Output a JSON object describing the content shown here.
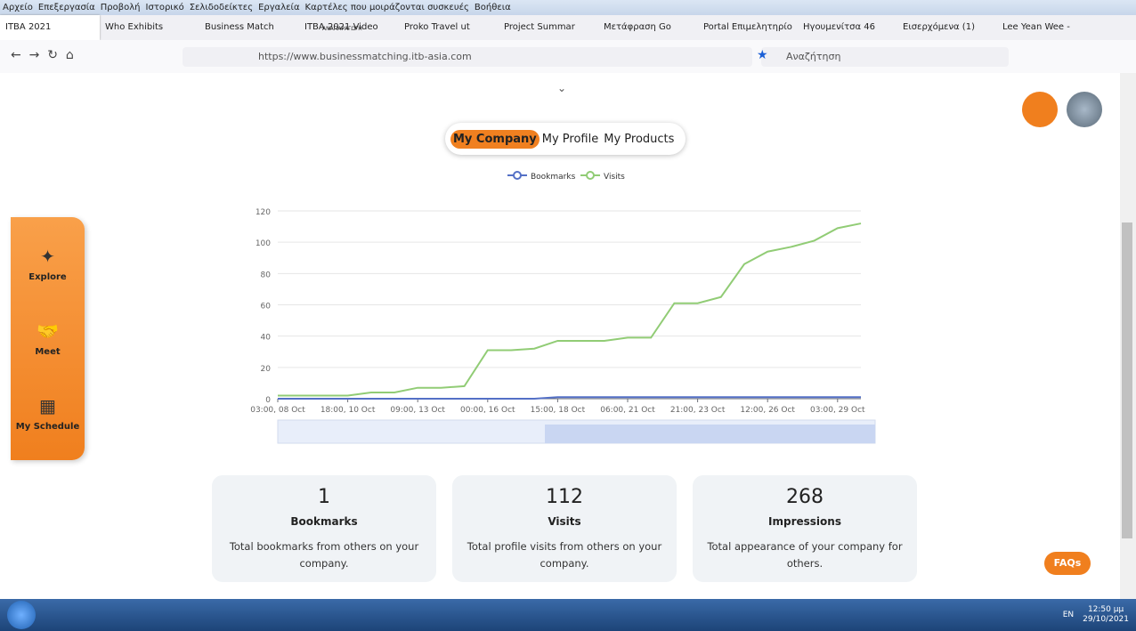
{
  "menu": [
    "Αρχείο",
    "Επεξεργασία",
    "Προβολή",
    "Ιστορικό",
    "Σελιδοδείκτες",
    "Εργαλεία",
    "Καρτέλες που μοιράζονται συσκευές",
    "Βοήθεια"
  ],
  "tabs": [
    {
      "title": "ITBA 2021"
    },
    {
      "title": "Who Exhibits"
    },
    {
      "title": "Business Match"
    },
    {
      "title": "ITBA 2021 Video",
      "subtitle": "ΑΝΑΠΑΡΑΓΩΓΗ"
    },
    {
      "title": "Proko Travel ut"
    },
    {
      "title": "Project Summar"
    },
    {
      "title": "Μετάφραση Go"
    },
    {
      "title": "Portal Επιμελητηρίο"
    },
    {
      "title": "Ηγουμενίτσα 46"
    },
    {
      "title": "Εισερχόμενα (1)"
    },
    {
      "title": "Lee Yean Wee -"
    }
  ],
  "url": "https://www.businessmatching.itb-asia.com",
  "search_placeholder": "Αναζήτηση",
  "segment_tabs": [
    "My Company",
    "My Profile",
    "My Products"
  ],
  "sidebar": [
    "Explore",
    "Meet",
    "My Schedule"
  ],
  "chart_data": {
    "type": "line",
    "categories": [
      "03:00, 08 Oct",
      null,
      null,
      "18:00, 10 Oct",
      null,
      null,
      "09:00, 13 Oct",
      null,
      null,
      "00:00, 16 Oct",
      null,
      null,
      "15:00, 18 Oct",
      null,
      null,
      "06:00, 21 Oct",
      null,
      null,
      "21:00, 23 Oct",
      null,
      null,
      "12:00, 26 Oct",
      null,
      null,
      "03:00, 29 Oct",
      null
    ],
    "series": [
      {
        "name": "Bookmarks",
        "color": "#5470c6",
        "values": [
          0,
          0,
          0,
          0,
          0,
          0,
          0,
          0,
          0,
          0,
          0,
          0,
          1,
          1,
          1,
          1,
          1,
          1,
          1,
          1,
          1,
          1,
          1,
          1,
          1,
          1
        ]
      },
      {
        "name": "Visits",
        "color": "#91cc75",
        "values": [
          2,
          2,
          2,
          2,
          4,
          4,
          7,
          7,
          8,
          31,
          31,
          32,
          37,
          37,
          37,
          39,
          39,
          61,
          61,
          65,
          86,
          94,
          97,
          101,
          109,
          112
        ]
      }
    ],
    "ylim": [
      0,
      120
    ],
    "yticks": [
      0,
      20,
      40,
      60,
      80,
      100,
      120
    ],
    "grid": true,
    "legend": "top"
  },
  "cards": [
    {
      "value": 1,
      "label": "Bookmarks",
      "description": "Total bookmarks from others on your company."
    },
    {
      "value": 112,
      "label": "Visits",
      "description": "Total profile visits from others on your company."
    },
    {
      "value": 268,
      "label": "Impressions",
      "description": "Total appearance of your company for others."
    }
  ],
  "faqs": "FAQs",
  "tray": {
    "language": "EN",
    "time": "12:50 μμ",
    "date": "29/10/2021"
  }
}
